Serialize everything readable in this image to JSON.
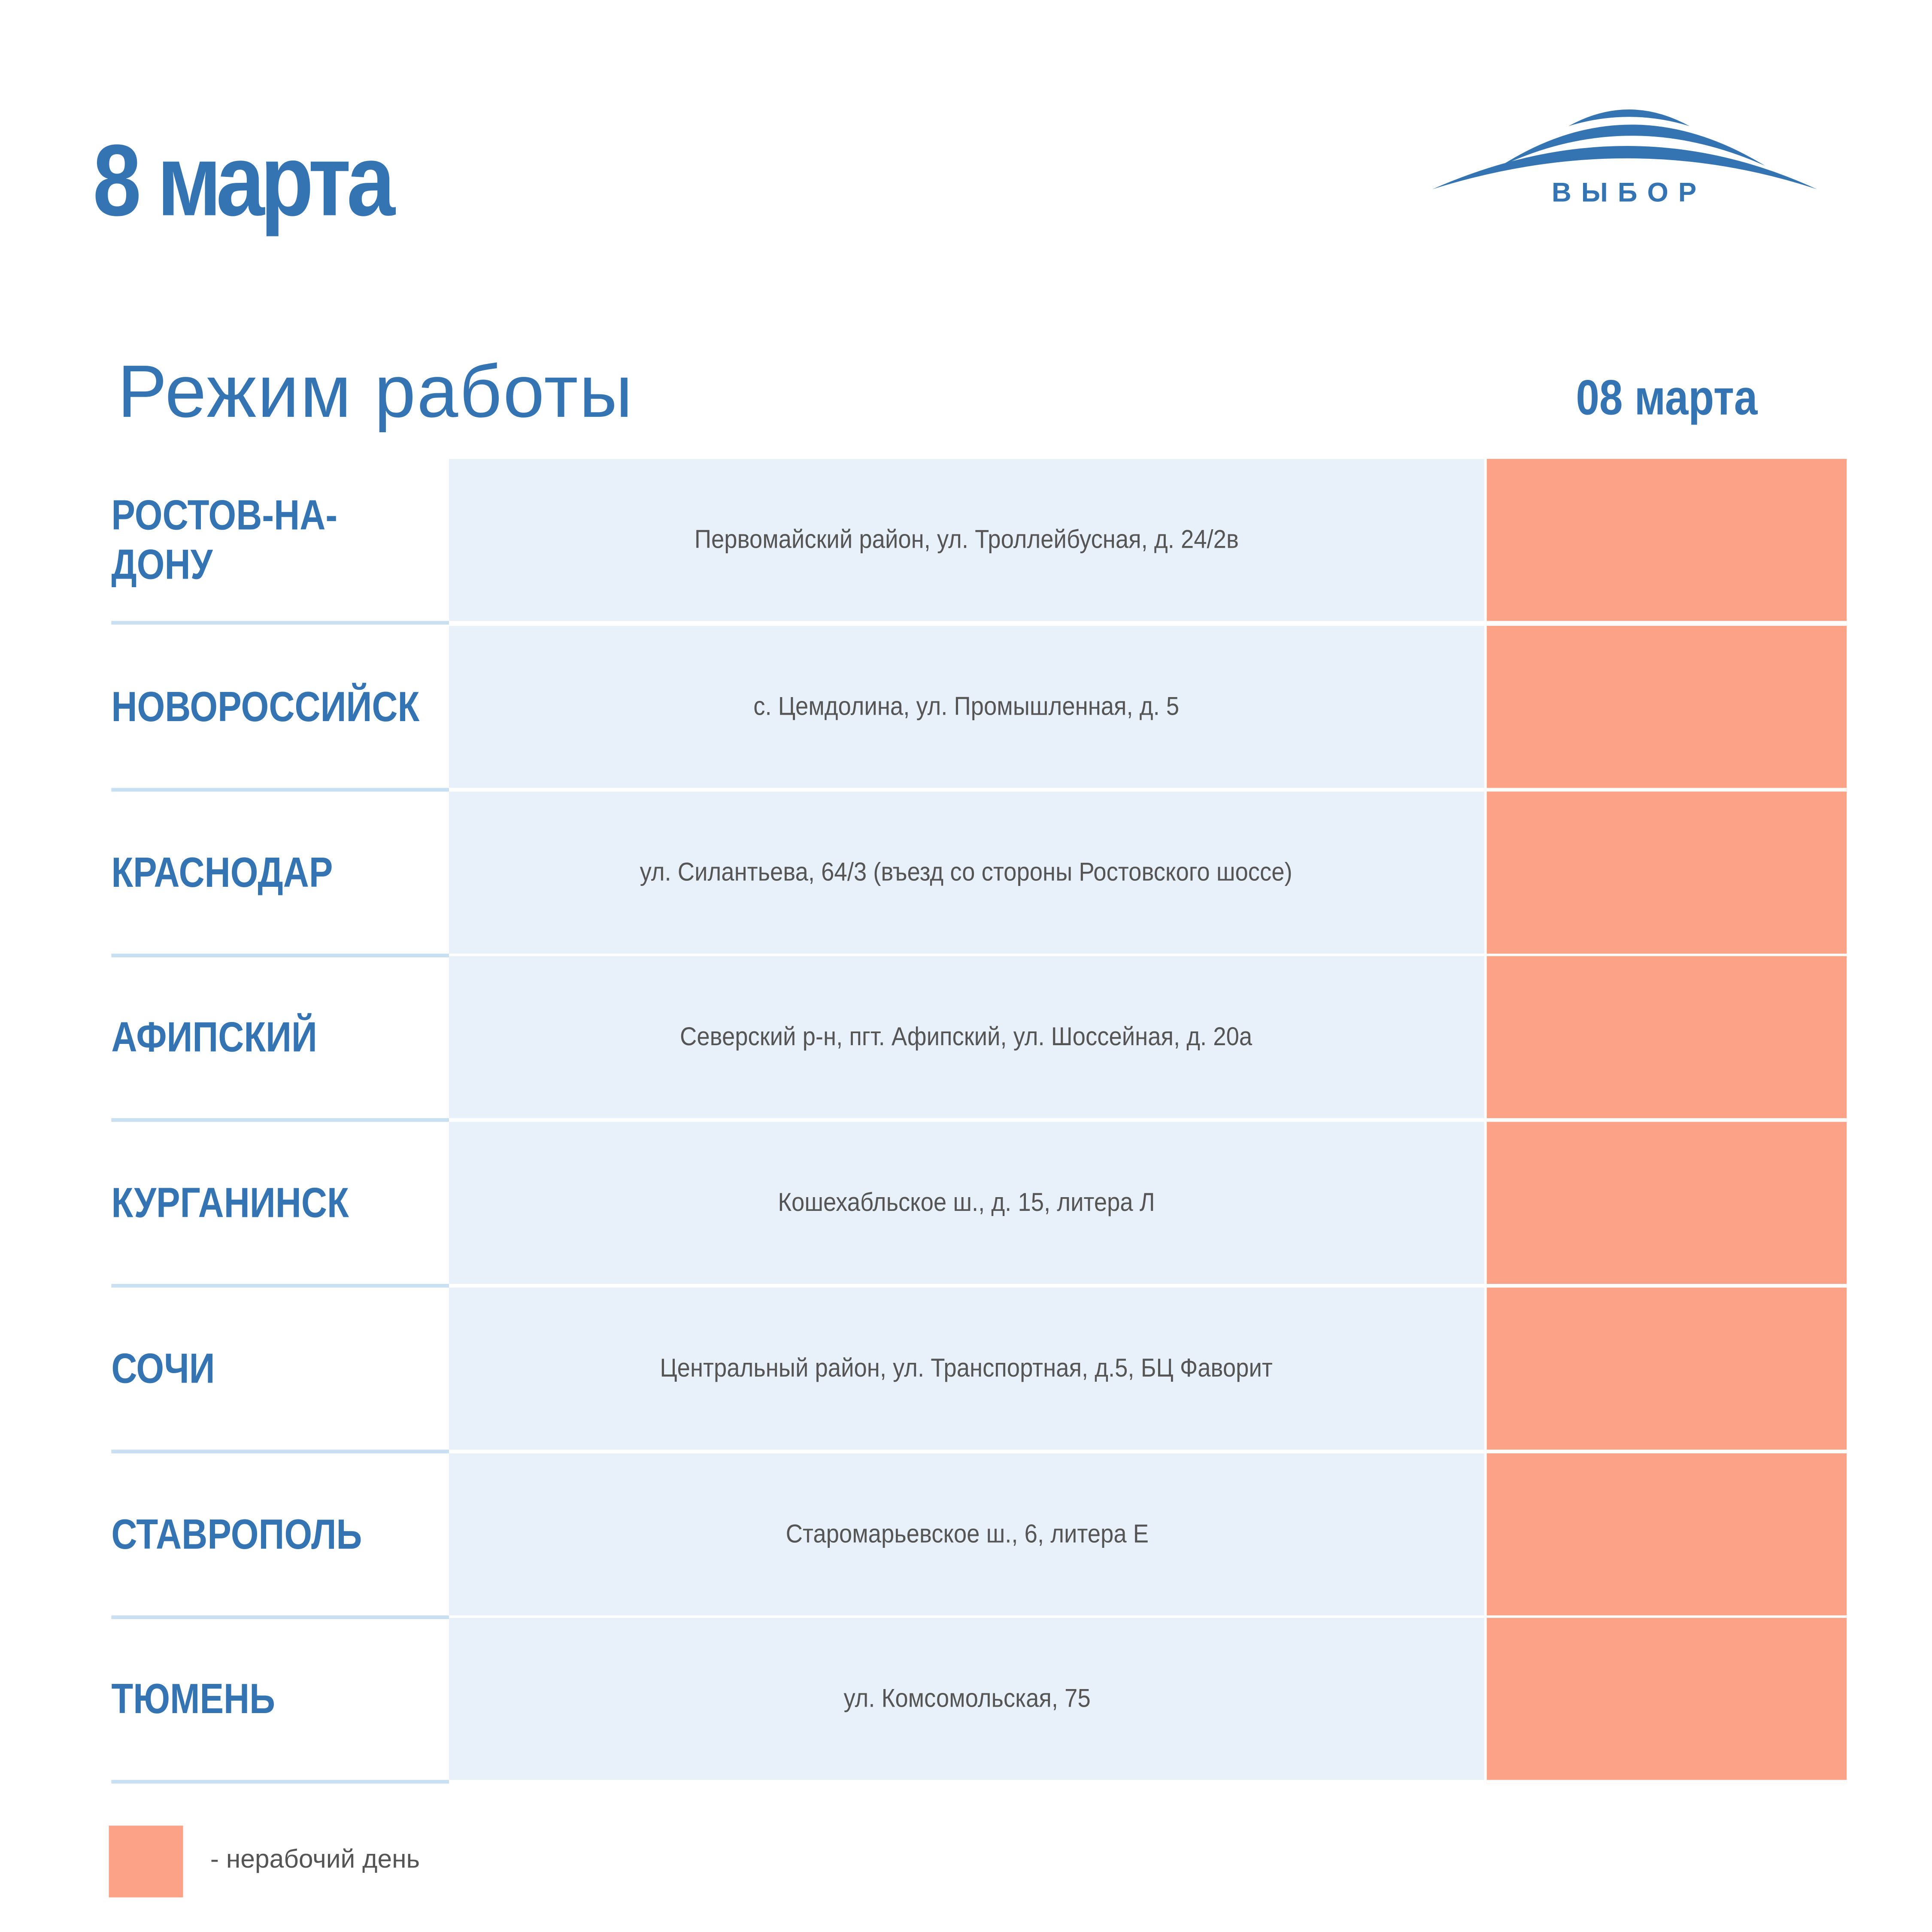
{
  "header": {
    "title": "8 марта",
    "logo_text": "ВЫБОР"
  },
  "schedule": {
    "subtitle": "Режим работы",
    "column_header": "08 марта",
    "rows": [
      {
        "city": "РОСТОВ-НА-ДОНУ",
        "address": "Первомайский район, ул. Троллейбусная, д. 24/2в",
        "status": "non-working"
      },
      {
        "city": "НОВОРОССИЙСК",
        "address": "с. Цемдолина, ул. Промышленная, д. 5",
        "status": "non-working"
      },
      {
        "city": "КРАСНОДАР",
        "address": "ул. Силантьева, 64/3 (въезд со стороны Ростовского шоссе)",
        "status": "non-working"
      },
      {
        "city": "АФИПСКИЙ",
        "address": "Северский р-н, пгт. Афипский, ул. Шоссейная, д. 20а",
        "status": "non-working"
      },
      {
        "city": "КУРГАНИНСК",
        "address": "Кошехабльское ш., д. 15, литера Л",
        "status": "non-working"
      },
      {
        "city": "СОЧИ",
        "address": "Центральный район, ул. Транспортная, д.5, БЦ Фаворит",
        "status": "non-working"
      },
      {
        "city": "СТАВРОПОЛЬ",
        "address": "Старомарьевское ш., 6, литера Е",
        "status": "non-working"
      },
      {
        "city": "ТЮМЕНЬ",
        "address": "ул. Комсомольская, 75",
        "status": "non-working"
      }
    ]
  },
  "legend": {
    "text": "- нерабочий день",
    "color": "#fca286"
  },
  "colors": {
    "brand": "#3574b3",
    "row_bg": "#e8f1f9",
    "non_working": "#fca286"
  }
}
